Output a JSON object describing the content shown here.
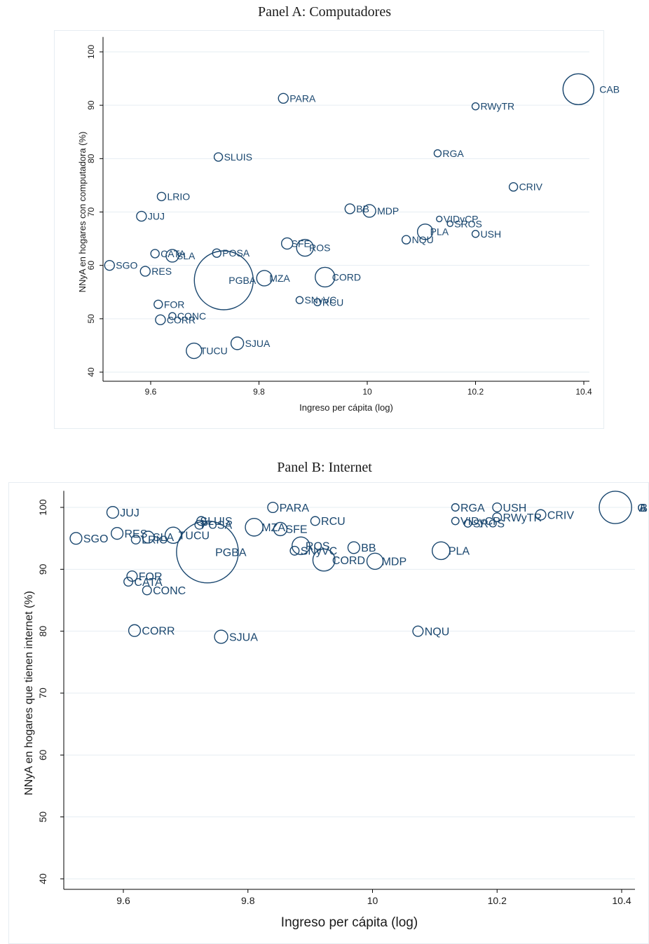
{
  "colors": {
    "marker": "#1a476f",
    "grid": "#e6edf2",
    "axis": "#000000",
    "text": "#1a1a1a"
  },
  "chart_data": [
    {
      "type": "scatter",
      "title": "Panel A: Computadores",
      "xlabel": "Ingreso per cápita (log)",
      "ylabel": "NNyA en hogares con computadora (%)",
      "xlim": [
        9.51,
        10.41
      ],
      "ylim": [
        38,
        102
      ],
      "xticks": [
        9.6,
        9.8,
        10,
        10.2,
        10.4
      ],
      "xtick_labels": [
        "9.6",
        "9.8",
        "10",
        "10.2",
        "10.4"
      ],
      "yticks": [
        40,
        50,
        60,
        70,
        80,
        90,
        100
      ],
      "ytick_labels": [
        "40",
        "50",
        "60",
        "70",
        "80",
        "90",
        "100"
      ],
      "grid": true,
      "marker": "hollow-circle",
      "points": [
        {
          "label": "CAB",
          "x": 10.39,
          "y": 93.0,
          "w": 22,
          "lx": 8
        },
        {
          "label": "PARA",
          "x": 9.845,
          "y": 91.3,
          "w": 7,
          "lx": 2
        },
        {
          "label": "RWyTR",
          "x": 10.2,
          "y": 89.8,
          "w": 5,
          "lx": 2
        },
        {
          "label": "SLUIS",
          "x": 9.725,
          "y": 80.3,
          "w": 6,
          "lx": 2
        },
        {
          "label": "RGA",
          "x": 10.13,
          "y": 81.0,
          "w": 5,
          "lx": 2
        },
        {
          "label": "CRIV",
          "x": 10.27,
          "y": 74.7,
          "w": 6,
          "lx": 2
        },
        {
          "label": "LRIO",
          "x": 9.62,
          "y": 72.9,
          "w": 6,
          "lx": 2
        },
        {
          "label": "JUJ",
          "x": 9.583,
          "y": 69.2,
          "w": 7,
          "lx": 2
        },
        {
          "label": "BB",
          "x": 9.968,
          "y": 70.6,
          "w": 7,
          "lx": 2
        },
        {
          "label": "MDP",
          "x": 10.004,
          "y": 70.2,
          "w": 9,
          "lx": 2
        },
        {
          "label": "VIDyCP",
          "x": 10.133,
          "y": 68.7,
          "w": 4,
          "lx": 2
        },
        {
          "label": "SROS",
          "x": 10.153,
          "y": 67.8,
          "w": 4,
          "lx": 2
        },
        {
          "label": "USH",
          "x": 10.2,
          "y": 65.9,
          "w": 5,
          "lx": 2
        },
        {
          "label": "PLA",
          "x": 10.107,
          "y": 66.3,
          "w": 11,
          "lx": -4
        },
        {
          "label": "NQU",
          "x": 10.072,
          "y": 64.8,
          "w": 6,
          "lx": 2
        },
        {
          "label": "SFE",
          "x": 9.852,
          "y": 64.1,
          "w": 8,
          "lx": -2
        },
        {
          "label": "ROS",
          "x": 9.885,
          "y": 63.3,
          "w": 12,
          "lx": -6
        },
        {
          "label": "SGO",
          "x": 9.524,
          "y": 60.0,
          "w": 7,
          "lx": 2
        },
        {
          "label": "CATA",
          "x": 9.608,
          "y": 62.2,
          "w": 6,
          "lx": 2
        },
        {
          "label": "SLA",
          "x": 9.64,
          "y": 61.8,
          "w": 9,
          "lx": -3
        },
        {
          "label": "POSA",
          "x": 9.722,
          "y": 62.3,
          "w": 6,
          "lx": 2
        },
        {
          "label": "RES",
          "x": 9.59,
          "y": 58.9,
          "w": 7,
          "lx": 2
        },
        {
          "label": "PGBA",
          "x": 9.735,
          "y": 57.2,
          "w": 42,
          "lx": -35
        },
        {
          "label": "MZA",
          "x": 9.81,
          "y": 57.6,
          "w": 11,
          "lx": -4
        },
        {
          "label": "CORD",
          "x": 9.922,
          "y": 57.8,
          "w": 14,
          "lx": -4
        },
        {
          "label": "SNyVC",
          "x": 9.875,
          "y": 53.5,
          "w": 5,
          "lx": 2
        },
        {
          "label": "RCU",
          "x": 9.908,
          "y": 53.1,
          "w": 5,
          "lx": 2
        },
        {
          "label": "FOR",
          "x": 9.614,
          "y": 52.7,
          "w": 6,
          "lx": 2
        },
        {
          "label": "CONC",
          "x": 9.64,
          "y": 50.5,
          "w": 5,
          "lx": 2
        },
        {
          "label": "CORR",
          "x": 9.618,
          "y": 49.8,
          "w": 7,
          "lx": 2
        },
        {
          "label": "SJUA",
          "x": 9.76,
          "y": 45.4,
          "w": 9,
          "lx": 2
        },
        {
          "label": "TUCU",
          "x": 9.68,
          "y": 44.0,
          "w": 11,
          "lx": -2
        }
      ]
    },
    {
      "type": "scatter",
      "title": "Panel B: Internet",
      "xlabel": "Ingreso per cápita (log)",
      "ylabel": "NNyA en hogares que tienen internet (%)",
      "xlim": [
        9.51,
        10.41
      ],
      "ylim": [
        38,
        102
      ],
      "xticks": [
        9.6,
        9.8,
        10,
        10.2,
        10.4
      ],
      "xtick_labels": [
        "9.6",
        "9.8",
        "10",
        "10.2",
        "10.4"
      ],
      "yticks": [
        40,
        50,
        60,
        70,
        80,
        90,
        100
      ],
      "ytick_labels": [
        "40",
        "50",
        "60",
        "70",
        "80",
        "90",
        "100"
      ],
      "grid": true,
      "marker": "hollow-circle",
      "points": [
        {
          "label": "CAB",
          "x": 10.39,
          "y": 100.0,
          "w": 22,
          "lx": 8
        },
        {
          "label": "JUJ",
          "x": 9.583,
          "y": 99.2,
          "w": 8,
          "lx": 2
        },
        {
          "label": "PARA",
          "x": 9.84,
          "y": 100.0,
          "w": 7,
          "lx": 2
        },
        {
          "label": "RGA",
          "x": 10.133,
          "y": 100.0,
          "w": 5,
          "lx": 2
        },
        {
          "label": "USH",
          "x": 10.2,
          "y": 100.0,
          "w": 6,
          "lx": 2
        },
        {
          "label": "RWyTR",
          "x": 10.2,
          "y": 98.4,
          "w": 6,
          "lx": 2
        },
        {
          "label": "CRIV",
          "x": 10.27,
          "y": 98.8,
          "w": 7,
          "lx": 2
        },
        {
          "label": "RCU",
          "x": 9.908,
          "y": 97.8,
          "w": 6,
          "lx": 2
        },
        {
          "label": "VIDyCP",
          "x": 10.133,
          "y": 97.8,
          "w": 5,
          "lx": 2
        },
        {
          "label": "SROS",
          "x": 10.153,
          "y": 97.4,
          "w": 5,
          "lx": 2
        },
        {
          "label": "SLUIS",
          "x": 9.725,
          "y": 97.8,
          "w": 6,
          "lx": -8
        },
        {
          "label": "POSA",
          "x": 9.722,
          "y": 97.2,
          "w": 6,
          "lx": -4
        },
        {
          "label": "MZA",
          "x": 9.81,
          "y": 96.8,
          "w": 12,
          "lx": -2
        },
        {
          "label": "SFE",
          "x": 9.852,
          "y": 96.5,
          "w": 9,
          "lx": -2
        },
        {
          "label": "RES",
          "x": 9.59,
          "y": 95.8,
          "w": 8,
          "lx": 2
        },
        {
          "label": "SGO",
          "x": 9.524,
          "y": 95.0,
          "w": 8,
          "lx": 2
        },
        {
          "label": "LRIO",
          "x": 9.62,
          "y": 94.8,
          "w": 6,
          "lx": 2
        },
        {
          "label": "SLA",
          "x": 9.64,
          "y": 95.2,
          "w": 8,
          "lx": -2
        },
        {
          "label": "TUCU",
          "x": 9.68,
          "y": 95.5,
          "w": 11,
          "lx": -4
        },
        {
          "label": "PGBA",
          "x": 9.735,
          "y": 92.8,
          "w": 42,
          "lx": -33
        },
        {
          "label": "ROS",
          "x": 9.885,
          "y": 93.8,
          "w": 12,
          "lx": -6
        },
        {
          "label": "SNyVC",
          "x": 9.875,
          "y": 93.0,
          "w": 6,
          "lx": 2
        },
        {
          "label": "BB",
          "x": 9.97,
          "y": 93.5,
          "w": 8,
          "lx": 2
        },
        {
          "label": "PLA",
          "x": 10.11,
          "y": 93.0,
          "w": 12,
          "lx": -2
        },
        {
          "label": "CORD",
          "x": 9.922,
          "y": 91.5,
          "w": 15,
          "lx": -4
        },
        {
          "label": "MDP",
          "x": 10.004,
          "y": 91.3,
          "w": 11,
          "lx": -2
        },
        {
          "label": "FOR",
          "x": 9.614,
          "y": 88.9,
          "w": 7,
          "lx": 2
        },
        {
          "label": "CATA",
          "x": 9.608,
          "y": 88.0,
          "w": 6,
          "lx": 2
        },
        {
          "label": "CONC",
          "x": 9.638,
          "y": 86.6,
          "w": 6,
          "lx": 2
        },
        {
          "label": "CORR",
          "x": 9.618,
          "y": 80.1,
          "w": 8,
          "lx": 2
        },
        {
          "label": "SJUA",
          "x": 9.757,
          "y": 79.1,
          "w": 9,
          "lx": 2
        },
        {
          "label": "NQU",
          "x": 10.073,
          "y": 80.0,
          "w": 7,
          "lx": 2
        }
      ]
    }
  ]
}
